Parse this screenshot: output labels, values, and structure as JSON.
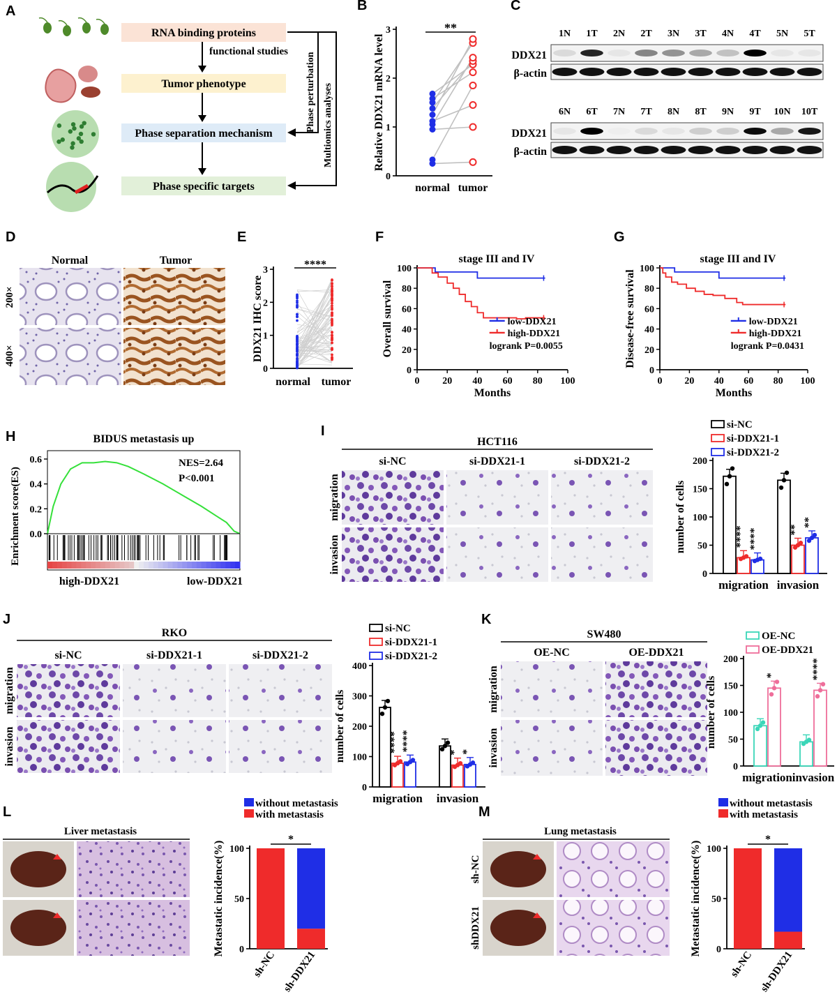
{
  "panels": {
    "A": {
      "letter": "A",
      "boxes": [
        "RNA binding proteins",
        "Tumor phenotype",
        "Phase separation mechanism",
        "Phase specific targets"
      ],
      "box_colors": [
        "#fbe3d6",
        "#fdf1cf",
        "#deebf7",
        "#e2f0d9"
      ],
      "step_label": "functional studies",
      "side_label_1": "Phase perturbation",
      "side_label_2": "Multiomics analyses"
    },
    "B": {
      "letter": "B"
    },
    "C": {
      "letter": "C",
      "lanes_top": [
        "1N",
        "1T",
        "2N",
        "2T",
        "3N",
        "3T",
        "4N",
        "4T",
        "5N",
        "5T"
      ],
      "lanes_bottom": [
        "6N",
        "6T",
        "7N",
        "7T",
        "8N",
        "8T",
        "9N",
        "9T",
        "10N",
        "10T"
      ],
      "ddx21_top": [
        0.1,
        0.85,
        0.05,
        0.45,
        0.4,
        0.3,
        0.2,
        1.0,
        0.05,
        0.05
      ],
      "ddx21_bottom": [
        0.05,
        1.0,
        0.02,
        0.1,
        0.05,
        0.15,
        0.15,
        0.95,
        0.3,
        0.9
      ],
      "row_labels": [
        "DDX21",
        "β-actin"
      ]
    },
    "D": {
      "letter": "D",
      "columns": [
        "Normal",
        "Tumor"
      ],
      "rows": [
        "200×",
        "400×"
      ]
    },
    "E": {
      "letter": "E"
    },
    "F": {
      "letter": "F"
    },
    "G": {
      "letter": "G"
    },
    "H": {
      "letter": "H"
    },
    "I": {
      "letter": "I",
      "cell_line": "HCT116",
      "columns": [
        "si-NC",
        "si-DDX21-1",
        "si-DDX21-2"
      ],
      "rows": [
        "migration",
        "invasion"
      ]
    },
    "J": {
      "letter": "J",
      "cell_line": "RKO",
      "columns": [
        "si-NC",
        "si-DDX21-1",
        "si-DDX21-2"
      ],
      "rows": [
        "migration",
        "invasion"
      ]
    },
    "K": {
      "letter": "K",
      "cell_line": "SW480",
      "columns": [
        "OE-NC",
        "OE-DDX21"
      ],
      "rows": [
        "migration",
        "invasion"
      ]
    },
    "L": {
      "letter": "L",
      "title": "Liver metastasis",
      "rows": [
        "sh-NC",
        "shDDX21"
      ]
    },
    "M": {
      "letter": "M",
      "title": "Lung metastasis",
      "rows": [
        "sh-NC",
        "shDDX21"
      ]
    }
  },
  "colors": {
    "blue": "#1f2ee6",
    "red": "#ef2b2b",
    "gray": "#c0c0c0",
    "teal": "#3ad6b8",
    "pink": "#ee6e9a",
    "green": "#35e03a",
    "purple": "#7a4fb0",
    "brown": "#a0602a"
  },
  "chart_data": [
    {
      "id": "B",
      "type": "scatter",
      "ylabel": "Relative DDX21 mRNA level",
      "categories": [
        "normal",
        "tumor"
      ],
      "ylim": [
        0,
        3
      ],
      "yticks": [
        0,
        1,
        2,
        3
      ],
      "significance": "**",
      "paired": [
        [
          1.68,
          2.28
        ],
        [
          1.58,
          2.12
        ],
        [
          1.5,
          2.72
        ],
        [
          1.38,
          2.35
        ],
        [
          1.25,
          2.8
        ],
        [
          1.12,
          1.45
        ],
        [
          1.05,
          2.42
        ],
        [
          0.95,
          1.0
        ],
        [
          0.33,
          1.85
        ],
        [
          0.25,
          0.28
        ]
      ]
    },
    {
      "id": "E",
      "type": "scatter",
      "ylabel": "DDX21 IHC score",
      "categories": [
        "normal",
        "tumor"
      ],
      "ylim": [
        0,
        3
      ],
      "yticks": [
        0,
        1,
        2,
        3
      ],
      "significance": "****",
      "normal_max": 2.4,
      "tumor_max": 2.75
    },
    {
      "id": "F",
      "type": "line",
      "title": "stage III and IV",
      "xlabel": "Months",
      "ylabel": "Overall survival",
      "xlim": [
        0,
        100
      ],
      "ylim": [
        0,
        100
      ],
      "xticks": [
        0,
        20,
        40,
        60,
        80,
        100
      ],
      "yticks": [
        0,
        20,
        40,
        60,
        80,
        100
      ],
      "series": [
        {
          "name": "low-DDX21",
          "color": "#1f2ee6",
          "x": [
            0,
            12,
            12,
            40,
            40,
            85
          ],
          "y": [
            100,
            100,
            96,
            96,
            90,
            90
          ]
        },
        {
          "name": "high-DDX21",
          "color": "#ef2b2b",
          "x": [
            0,
            10,
            10,
            14,
            14,
            20,
            24,
            28,
            32,
            36,
            40,
            44,
            48,
            56,
            66,
            72,
            85
          ],
          "y": [
            100,
            100,
            95,
            95,
            91,
            85,
            80,
            74,
            67,
            62,
            56,
            51,
            51,
            51,
            50,
            51,
            51
          ]
        }
      ],
      "annotation": "logrank P=0.0055"
    },
    {
      "id": "G",
      "type": "line",
      "title": "stage III and IV",
      "xlabel": "Months",
      "ylabel": "Disease-free survival",
      "xlim": [
        0,
        100
      ],
      "ylim": [
        0,
        100
      ],
      "xticks": [
        0,
        20,
        40,
        60,
        80,
        100
      ],
      "yticks": [
        0,
        20,
        40,
        60,
        80,
        100
      ],
      "series": [
        {
          "name": "low-DDX21",
          "color": "#1f2ee6",
          "x": [
            0,
            10,
            10,
            40,
            40,
            85
          ],
          "y": [
            100,
            100,
            96,
            96,
            90,
            90
          ]
        },
        {
          "name": "high-DDX21",
          "color": "#ef2b2b",
          "x": [
            0,
            2,
            4,
            8,
            12,
            18,
            24,
            30,
            36,
            44,
            52,
            56,
            85
          ],
          "y": [
            100,
            95,
            91,
            86,
            84,
            80,
            77,
            74,
            73,
            70,
            66,
            64,
            64
          ]
        }
      ],
      "annotation": "logrank P=0.0431"
    },
    {
      "id": "H",
      "type": "line",
      "title": "BIDUS metastasis up",
      "ylabel": "Enrichment score(ES)",
      "ylim": [
        0,
        0.6
      ],
      "yticks": [
        0.0,
        0.2,
        0.4,
        0.6
      ],
      "x": [
        0,
        0.03,
        0.07,
        0.12,
        0.18,
        0.24,
        0.3,
        0.36,
        0.42,
        0.5,
        0.6,
        0.7,
        0.8,
        0.88,
        0.93,
        0.97,
        1.0
      ],
      "y": [
        0,
        0.22,
        0.4,
        0.52,
        0.57,
        0.57,
        0.58,
        0.57,
        0.54,
        0.48,
        0.4,
        0.31,
        0.22,
        0.14,
        0.09,
        0.02,
        0.0
      ],
      "stats": [
        "NES=2.64",
        "P<0.001"
      ],
      "footer": [
        "high-DDX21",
        "low-DDX21"
      ]
    },
    {
      "id": "I",
      "type": "bar",
      "ylabel": "number of cells",
      "categories": [
        "migration",
        "invasion"
      ],
      "ylim": [
        0,
        200
      ],
      "yticks": [
        0,
        50,
        100,
        150,
        200
      ],
      "series": [
        {
          "name": "si-NC",
          "color": "#000000",
          "values": [
            172,
            165
          ],
          "sig": [
            "",
            ""
          ]
        },
        {
          "name": "si-DDX21-1",
          "color": "#ef2b2b",
          "values": [
            28,
            50
          ],
          "sig": [
            "****",
            "**"
          ]
        },
        {
          "name": "si-DDX21-2",
          "color": "#1f2ee6",
          "values": [
            24,
            63
          ],
          "sig": [
            "****",
            "**"
          ]
        }
      ]
    },
    {
      "id": "J",
      "type": "bar",
      "ylabel": "number of cells",
      "categories": [
        "migration",
        "invasion"
      ],
      "ylim": [
        0,
        400
      ],
      "yticks": [
        0,
        100,
        200,
        300,
        400
      ],
      "series": [
        {
          "name": "si-NC",
          "color": "#000000",
          "values": [
            262,
            135
          ],
          "sig": [
            "",
            ""
          ]
        },
        {
          "name": "si-DDX21-1",
          "color": "#ef2b2b",
          "values": [
            78,
            72
          ],
          "sig": [
            "****",
            "*"
          ]
        },
        {
          "name": "si-DDX21-2",
          "color": "#1f2ee6",
          "values": [
            82,
            74
          ],
          "sig": [
            "****",
            "*"
          ]
        }
      ]
    },
    {
      "id": "K",
      "type": "bar",
      "ylabel": "number of cells",
      "categories": [
        "migration",
        "invasion"
      ],
      "ylim": [
        0,
        200
      ],
      "yticks": [
        0,
        50,
        100,
        150,
        200
      ],
      "series": [
        {
          "name": "OE-NC",
          "color": "#3ad6b8",
          "values": [
            75,
            45
          ],
          "sig": [
            "",
            ""
          ]
        },
        {
          "name": "OE-DDX21",
          "color": "#ee6e9a",
          "values": [
            145,
            141
          ],
          "sig": [
            "*",
            "****"
          ]
        }
      ]
    },
    {
      "id": "L",
      "type": "bar",
      "ylabel": "Metastatic incidence(%)",
      "categories": [
        "sh-NC",
        "sh-DDX21"
      ],
      "ylim": [
        0,
        100
      ],
      "yticks": [
        0,
        50,
        100
      ],
      "series": [
        {
          "name": "with metastasis",
          "color": "#ef2b2b",
          "values": [
            100,
            20
          ]
        },
        {
          "name": "without metastasis",
          "color": "#1f2ee6",
          "values": [
            0,
            80
          ]
        }
      ],
      "significance": "*"
    },
    {
      "id": "M",
      "type": "bar",
      "ylabel": "Metastatic incidence(%)",
      "categories": [
        "sh-NC",
        "sh-DDX21"
      ],
      "ylim": [
        0,
        100
      ],
      "yticks": [
        0,
        50,
        100
      ],
      "series": [
        {
          "name": "with metastasis",
          "color": "#ef2b2b",
          "values": [
            100,
            17
          ]
        },
        {
          "name": "without metastasis",
          "color": "#1f2ee6",
          "values": [
            0,
            83
          ]
        }
      ],
      "significance": "*"
    }
  ]
}
